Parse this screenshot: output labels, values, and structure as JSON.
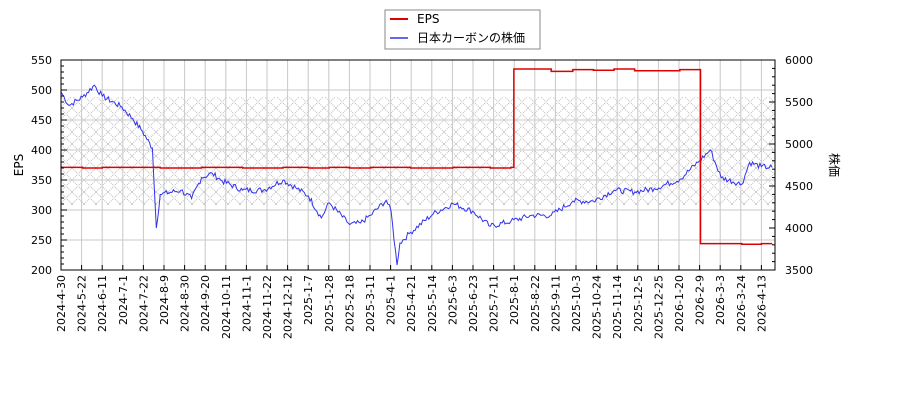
{
  "chart_data": {
    "type": "line",
    "title": "",
    "legend": {
      "position": "top-center",
      "entries": [
        {
          "label": "EPS",
          "color": "#dd0000",
          "axis": "left"
        },
        {
          "label": "日本カーボンの株価",
          "color": "#3333ee",
          "axis": "right"
        }
      ]
    },
    "xlabel": "",
    "ylabel_left": "EPS",
    "ylabel_right": "株価",
    "ylim_left": [
      200,
      550
    ],
    "ylim_right": [
      3500,
      6000
    ],
    "yticks_left": [
      200,
      250,
      300,
      350,
      400,
      450,
      500,
      550
    ],
    "yticks_right": [
      3500,
      4000,
      4500,
      5000,
      5500,
      6000
    ],
    "grid": true,
    "hatched_band_right_axis": [
      4350,
      5430
    ],
    "x_tick_labels": [
      "2024-4-30",
      "2024-5-22",
      "2024-6-11",
      "2024-7-1",
      "2024-7-22",
      "2024-8-9",
      "2024-8-30",
      "2024-9-20",
      "2024-10-11",
      "2024-11-1",
      "2024-11-22",
      "2024-12-12",
      "2025-1-7",
      "2025-1-28",
      "2025-2-18",
      "2025-3-11",
      "2025-4-1",
      "2025-4-21",
      "2025-5-14",
      "2025-6-3",
      "2025-6-23",
      "2025-7-11",
      "2025-8-1",
      "2025-8-22",
      "2025-9-11",
      "2025-10-3",
      "2025-10-24",
      "2025-11-14",
      "2025-12-5",
      "2025-12-25",
      "2026-1-20",
      "2026-2-9",
      "2026-3-3",
      "2026-3-24",
      "2026-4-13"
    ],
    "series": [
      {
        "name": "EPS",
        "axis": "left",
        "color": "#dd0000",
        "points": [
          {
            "x": "2024-4-30",
            "y": 371
          },
          {
            "x": "2024-5-22",
            "y": 370
          },
          {
            "x": "2024-6-11",
            "y": 371
          },
          {
            "x": "2024-7-1",
            "y": 371
          },
          {
            "x": "2024-7-22",
            "y": 371
          },
          {
            "x": "2024-8-9",
            "y": 370
          },
          {
            "x": "2024-8-30",
            "y": 370
          },
          {
            "x": "2024-9-20",
            "y": 371
          },
          {
            "x": "2024-10-11",
            "y": 371
          },
          {
            "x": "2024-11-1",
            "y": 370
          },
          {
            "x": "2024-11-22",
            "y": 370
          },
          {
            "x": "2024-12-12",
            "y": 371
          },
          {
            "x": "2025-1-7",
            "y": 370
          },
          {
            "x": "2025-1-28",
            "y": 371
          },
          {
            "x": "2025-2-18",
            "y": 370
          },
          {
            "x": "2025-3-11",
            "y": 371
          },
          {
            "x": "2025-4-1",
            "y": 371
          },
          {
            "x": "2025-4-21",
            "y": 370
          },
          {
            "x": "2025-5-14",
            "y": 370
          },
          {
            "x": "2025-6-3",
            "y": 371
          },
          {
            "x": "2025-6-23",
            "y": 371
          },
          {
            "x": "2025-7-11",
            "y": 370
          },
          {
            "x": "2025-8-1",
            "y": 371
          },
          {
            "x": "2025-8-4",
            "y": 535
          },
          {
            "x": "2025-8-22",
            "y": 535
          },
          {
            "x": "2025-9-11",
            "y": 531
          },
          {
            "x": "2025-10-3",
            "y": 534
          },
          {
            "x": "2025-10-24",
            "y": 533
          },
          {
            "x": "2025-11-14",
            "y": 535
          },
          {
            "x": "2025-12-5",
            "y": 532
          },
          {
            "x": "2025-12-25",
            "y": 532
          },
          {
            "x": "2026-1-20",
            "y": 534
          },
          {
            "x": "2026-2-9",
            "y": 534
          },
          {
            "x": "2026-2-10",
            "y": 244
          },
          {
            "x": "2026-3-3",
            "y": 244
          },
          {
            "x": "2026-3-24",
            "y": 243
          },
          {
            "x": "2026-4-13",
            "y": 244
          },
          {
            "x": "2026-4-24",
            "y": 244
          }
        ]
      },
      {
        "name": "日本カーボンの株価",
        "axis": "right",
        "color": "#3333ee",
        "points": [
          {
            "x": "2024-4-30",
            "y": 5620
          },
          {
            "x": "2024-5-8",
            "y": 5460
          },
          {
            "x": "2024-5-22",
            "y": 5560
          },
          {
            "x": "2024-6-3",
            "y": 5700
          },
          {
            "x": "2024-6-11",
            "y": 5570
          },
          {
            "x": "2024-7-1",
            "y": 5440
          },
          {
            "x": "2024-7-12",
            "y": 5300
          },
          {
            "x": "2024-7-22",
            "y": 5150
          },
          {
            "x": "2024-8-1",
            "y": 4950
          },
          {
            "x": "2024-8-5",
            "y": 4000
          },
          {
            "x": "2024-8-9",
            "y": 4400
          },
          {
            "x": "2024-8-30",
            "y": 4450
          },
          {
            "x": "2024-9-10",
            "y": 4350
          },
          {
            "x": "2024-9-20",
            "y": 4600
          },
          {
            "x": "2024-10-1",
            "y": 4650
          },
          {
            "x": "2024-10-11",
            "y": 4560
          },
          {
            "x": "2024-11-1",
            "y": 4450
          },
          {
            "x": "2024-11-22",
            "y": 4450
          },
          {
            "x": "2024-12-12",
            "y": 4570
          },
          {
            "x": "2024-12-25",
            "y": 4480
          },
          {
            "x": "2025-1-7",
            "y": 4380
          },
          {
            "x": "2025-1-20",
            "y": 4120
          },
          {
            "x": "2025-1-28",
            "y": 4300
          },
          {
            "x": "2025-2-18",
            "y": 4040
          },
          {
            "x": "2025-3-1",
            "y": 4060
          },
          {
            "x": "2025-3-11",
            "y": 4150
          },
          {
            "x": "2025-3-27",
            "y": 4330
          },
          {
            "x": "2025-4-1",
            "y": 4200
          },
          {
            "x": "2025-4-7",
            "y": 3560
          },
          {
            "x": "2025-4-10",
            "y": 3820
          },
          {
            "x": "2025-4-21",
            "y": 3950
          },
          {
            "x": "2025-5-14",
            "y": 4170
          },
          {
            "x": "2025-6-3",
            "y": 4290
          },
          {
            "x": "2025-6-23",
            "y": 4200
          },
          {
            "x": "2025-7-11",
            "y": 4020
          },
          {
            "x": "2025-8-1",
            "y": 4080
          },
          {
            "x": "2025-8-22",
            "y": 4150
          },
          {
            "x": "2025-9-11",
            "y": 4150
          },
          {
            "x": "2025-10-3",
            "y": 4320
          },
          {
            "x": "2025-10-24",
            "y": 4320
          },
          {
            "x": "2025-11-14",
            "y": 4450
          },
          {
            "x": "2025-12-5",
            "y": 4430
          },
          {
            "x": "2025-12-25",
            "y": 4470
          },
          {
            "x": "2026-1-20",
            "y": 4580
          },
          {
            "x": "2026-2-9",
            "y": 4800
          },
          {
            "x": "2026-2-20",
            "y": 4930
          },
          {
            "x": "2026-3-3",
            "y": 4600
          },
          {
            "x": "2026-3-24",
            "y": 4520
          },
          {
            "x": "2026-4-1",
            "y": 4780
          },
          {
            "x": "2026-4-13",
            "y": 4730
          },
          {
            "x": "2026-4-24",
            "y": 4720
          }
        ]
      }
    ]
  }
}
